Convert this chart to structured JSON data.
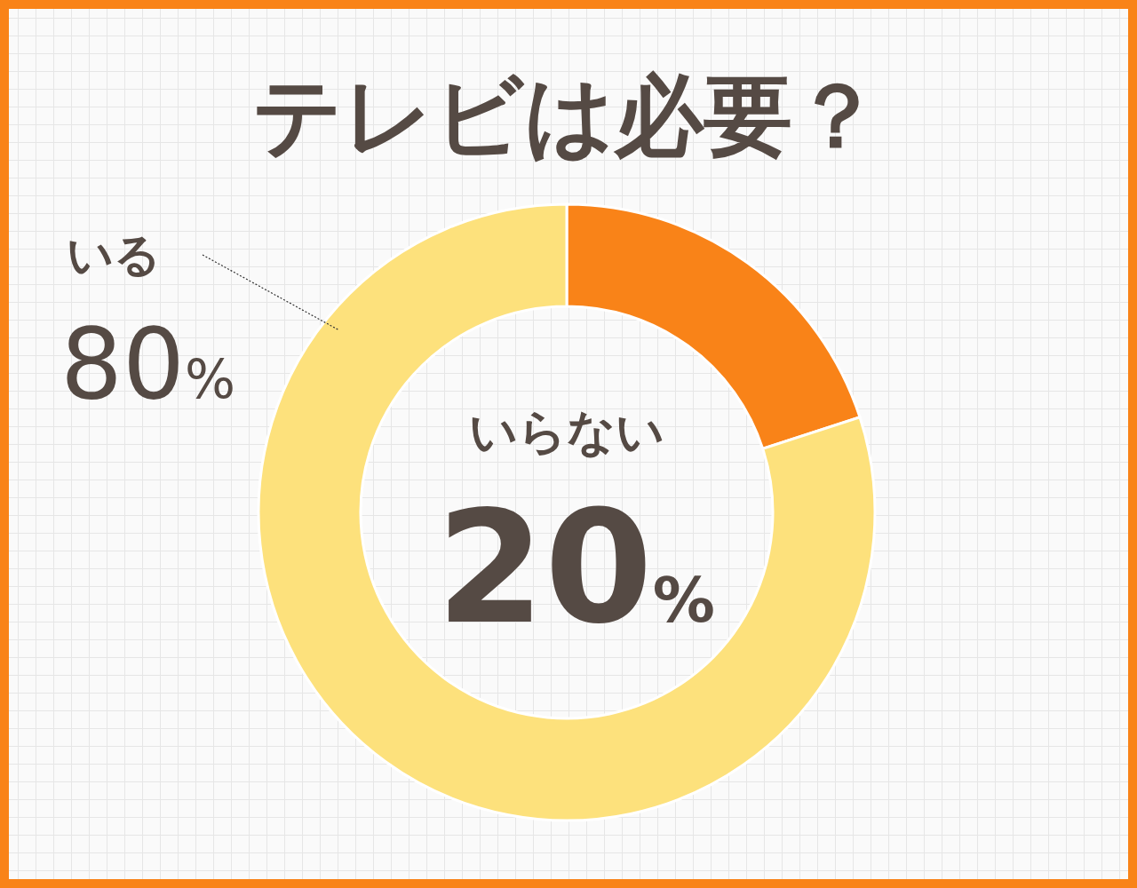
{
  "chart_data": {
    "type": "donut",
    "title": "テレビは必要？",
    "categories": [
      "いらない",
      "いる"
    ],
    "values": [
      20,
      80
    ],
    "colors": [
      "#f98318",
      "#fde17c"
    ],
    "value_labels": [
      "20%",
      "80%"
    ]
  }
}
